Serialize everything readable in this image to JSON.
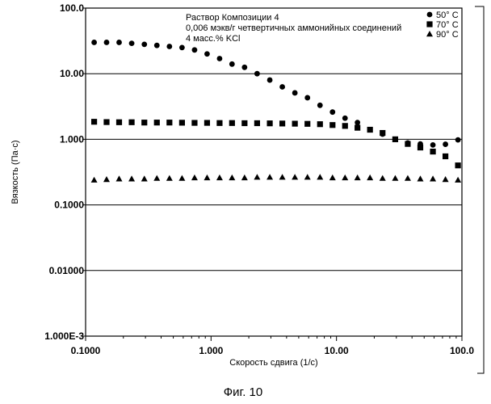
{
  "chart_data": {
    "type": "scatter",
    "x_scale": "log",
    "y_scale": "log",
    "xlim": [
      0.1,
      100
    ],
    "ylim": [
      0.001,
      100
    ],
    "xlabel": "Скорость сдвига (1/c)",
    "ylabel": "Вязкость (Па·с)",
    "x_ticks": [
      0.1,
      1,
      10,
      100
    ],
    "x_tick_labels": [
      "0.1000",
      "1.000",
      "10.00",
      "100.0"
    ],
    "y_ticks": [
      100,
      10,
      1,
      0.1,
      0.01,
      0.001
    ],
    "y_tick_labels": [
      "100.0",
      "10.00",
      "1.000",
      "0.1000",
      "0.01000",
      "1.000E-3"
    ],
    "grid": "horizontal",
    "annotation": [
      "Раствор Композиции 4",
      "0,006 мэкв/г четвертичных аммонийных соединений",
      "4 масс.% KCl"
    ],
    "legend_position": "top-right",
    "series": [
      {
        "name": "50° C",
        "marker": "circle",
        "x": [
          0.117,
          0.147,
          0.185,
          0.233,
          0.294,
          0.37,
          0.466,
          0.587,
          0.739,
          0.93,
          1.17,
          1.47,
          1.85,
          2.33,
          2.94,
          3.7,
          4.66,
          5.87,
          7.39,
          9.3,
          11.7,
          14.7,
          18.5,
          23.3,
          29.4,
          37.0,
          46.6,
          58.7,
          73.9,
          93.0
        ],
        "y": [
          30,
          30,
          30,
          29,
          28,
          27,
          26,
          25,
          23,
          20,
          17,
          14,
          12.5,
          10,
          8,
          6.3,
          5.1,
          4.3,
          3.3,
          2.6,
          2.1,
          1.8,
          1.4,
          1.2,
          1.0,
          0.88,
          0.85,
          0.82,
          0.84,
          0.98
        ]
      },
      {
        "name": "70° C",
        "marker": "square",
        "x": [
          0.117,
          0.147,
          0.185,
          0.233,
          0.294,
          0.37,
          0.466,
          0.587,
          0.739,
          0.93,
          1.17,
          1.47,
          1.85,
          2.33,
          2.94,
          3.7,
          4.66,
          5.87,
          7.39,
          9.3,
          11.7,
          14.7,
          18.5,
          23.3,
          29.4,
          37.0,
          46.6,
          58.7,
          73.9,
          93.0
        ],
        "y": [
          1.85,
          1.83,
          1.82,
          1.82,
          1.8,
          1.8,
          1.8,
          1.79,
          1.78,
          1.78,
          1.77,
          1.77,
          1.76,
          1.76,
          1.75,
          1.74,
          1.73,
          1.72,
          1.7,
          1.65,
          1.6,
          1.5,
          1.4,
          1.25,
          1.0,
          0.85,
          0.75,
          0.65,
          0.55,
          0.4
        ]
      },
      {
        "name": "90° C",
        "marker": "triangle",
        "x": [
          0.117,
          0.147,
          0.185,
          0.233,
          0.294,
          0.37,
          0.466,
          0.587,
          0.739,
          0.93,
          1.17,
          1.47,
          1.85,
          2.33,
          2.94,
          3.7,
          4.66,
          5.87,
          7.39,
          9.3,
          11.7,
          14.7,
          18.5,
          23.3,
          29.4,
          37.0,
          46.6,
          58.7,
          73.9,
          93.0
        ],
        "y": [
          0.24,
          0.245,
          0.25,
          0.25,
          0.25,
          0.255,
          0.255,
          0.255,
          0.26,
          0.26,
          0.26,
          0.26,
          0.26,
          0.265,
          0.265,
          0.265,
          0.265,
          0.265,
          0.265,
          0.26,
          0.26,
          0.26,
          0.26,
          0.255,
          0.255,
          0.255,
          0.25,
          0.25,
          0.245,
          0.24
        ]
      }
    ]
  },
  "figure_caption": "Фиг. 10"
}
